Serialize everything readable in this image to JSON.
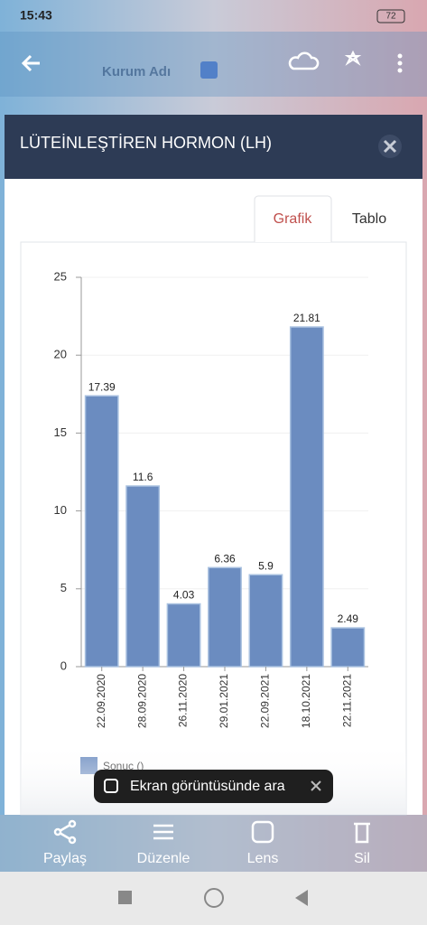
{
  "status_bar": {
    "time": "15:43",
    "battery": "72"
  },
  "background": {
    "field_label": "Kurum Adı"
  },
  "modal": {
    "title": "LÜTEİNLEŞTİREN HORMON (LH)",
    "tabs": [
      "Grafik",
      "Tablo"
    ]
  },
  "chart_data": {
    "type": "bar",
    "categories": [
      "22.09.2020",
      "28.09.2020",
      "26.11.2020",
      "29.01.2021",
      "22.09.2021",
      "18.10.2021",
      "22.11.2021"
    ],
    "series": [
      {
        "name": "Sonuç ()",
        "color": "#6b8cc0",
        "values": [
          17.39,
          11.6,
          4.03,
          6.36,
          5.9,
          21.81,
          2.49
        ]
      }
    ],
    "ylim": [
      0,
      25
    ],
    "yticks": [
      0,
      5,
      10,
      15,
      20,
      25
    ],
    "grid": true
  },
  "toast": "Ekran görüntüsünde ara",
  "actions": [
    "Paylaş",
    "Düzenle",
    "Lens",
    "Sil"
  ]
}
